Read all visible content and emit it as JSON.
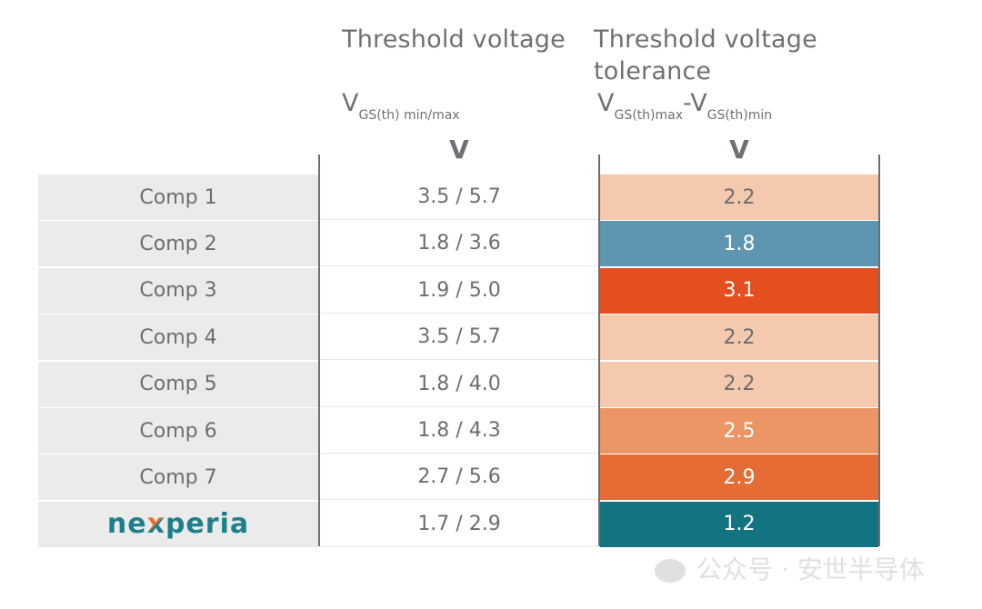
{
  "chart_data": {
    "type": "table",
    "columns": [
      {
        "title": "Threshold voltage",
        "symbol_main": "V",
        "symbol_sub": "GS(th) min/max",
        "unit": "V"
      },
      {
        "title_line1": "Threshold voltage",
        "title_line2": "tolerance",
        "symbol_a": "V",
        "symbol_a_sub": "GS(th)max",
        "symbol_dash": "-",
        "symbol_b": "V",
        "symbol_b_sub": "GS(th)min",
        "unit": "V"
      }
    ],
    "rows": [
      {
        "name": "Comp 1",
        "range": "3.5 / 5.7",
        "tolerance": "2.2",
        "color": "#f5c9ad",
        "text_color": "#6b6e72"
      },
      {
        "name": "Comp 2",
        "range": "1.8 / 3.6",
        "tolerance": "1.8",
        "color": "#5e95b0",
        "text_color": "#ffffff"
      },
      {
        "name": "Comp 3",
        "range": "1.9 / 5.0",
        "tolerance": "3.1",
        "color": "#e54e1f",
        "text_color": "#ffffff"
      },
      {
        "name": "Comp 4",
        "range": "3.5 / 5.7",
        "tolerance": "2.2",
        "color": "#f5c9ad",
        "text_color": "#6b6e72"
      },
      {
        "name": "Comp 5",
        "range": "1.8 / 4.0",
        "tolerance": "2.2",
        "color": "#f5c9ad",
        "text_color": "#6b6e72"
      },
      {
        "name": "Comp 6",
        "range": "1.8 / 4.3",
        "tolerance": "2.5",
        "color": "#ec9565",
        "text_color": "#ffffff"
      },
      {
        "name": "Comp 7",
        "range": "2.7 / 5.6",
        "tolerance": "2.9",
        "color": "#e66c35",
        "text_color": "#ffffff"
      },
      {
        "name": "nexperia",
        "is_logo": true,
        "range": "1.7 / 2.9",
        "tolerance": "1.2",
        "color": "#147380",
        "text_color": "#ffffff"
      }
    ]
  },
  "logo": {
    "part1": "ne",
    "part2": "x",
    "part3": "peria",
    "color_main": "#1e7f8c",
    "color_x1": "#e46d2c",
    "color_x2": "#1e7f8c"
  },
  "watermark": {
    "text": "公众号 · 安世半导体"
  }
}
